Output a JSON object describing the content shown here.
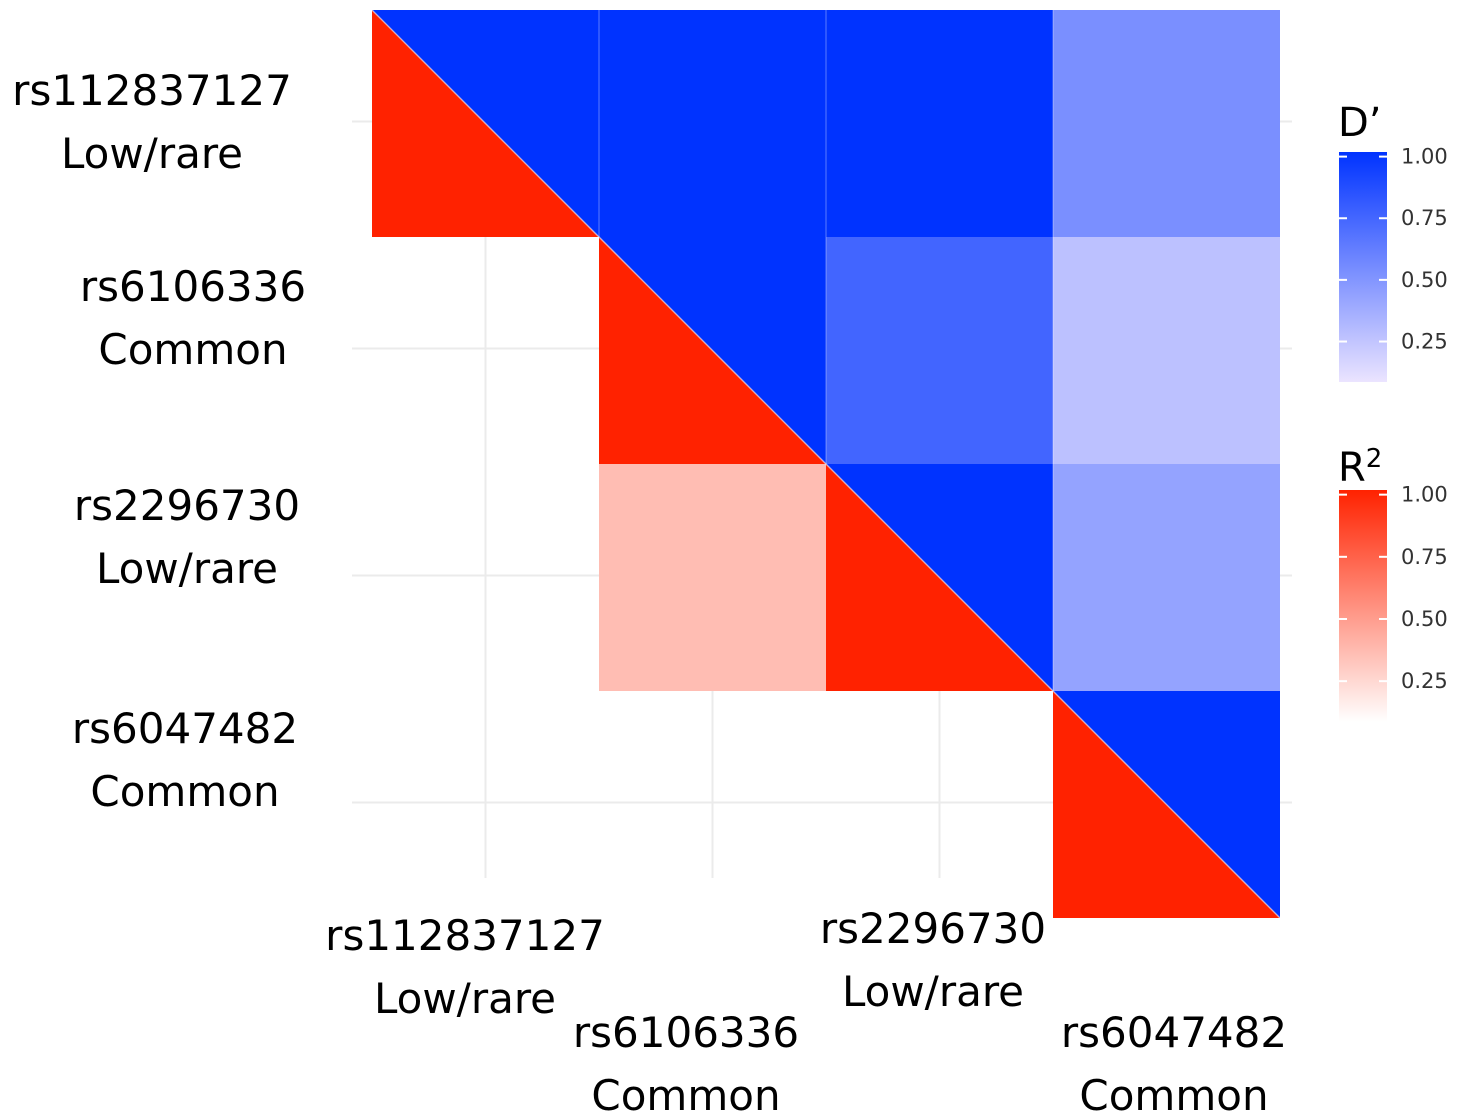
{
  "chart_data": {
    "type": "heatmap",
    "title": "",
    "snps": [
      {
        "id": "rs112837127",
        "freq": "Low/rare"
      },
      {
        "id": "rs6106336",
        "freq": "Common"
      },
      {
        "id": "rs2296730",
        "freq": "Low/rare"
      },
      {
        "id": "rs6047482",
        "freq": "Common"
      }
    ],
    "d_prime": [
      {
        "row": "rs112837127",
        "col": "rs112837127",
        "value": 1.0
      },
      {
        "row": "rs112837127",
        "col": "rs6106336",
        "value": 1.0
      },
      {
        "row": "rs112837127",
        "col": "rs2296730",
        "value": 1.0
      },
      {
        "row": "rs112837127",
        "col": "rs6047482",
        "value": 0.48
      },
      {
        "row": "rs6106336",
        "col": "rs6106336",
        "value": 1.0
      },
      {
        "row": "rs6106336",
        "col": "rs2296730",
        "value": 0.72
      },
      {
        "row": "rs6106336",
        "col": "rs6047482",
        "value": 0.2
      },
      {
        "row": "rs2296730",
        "col": "rs2296730",
        "value": 1.0
      },
      {
        "row": "rs2296730",
        "col": "rs6047482",
        "value": 0.37
      },
      {
        "row": "rs6047482",
        "col": "rs6047482",
        "value": 1.0
      }
    ],
    "r_squared": [
      {
        "row": "rs112837127",
        "col": "rs112837127",
        "value": 1.0
      },
      {
        "row": "rs6106336",
        "col": "rs6106336",
        "value": 1.0
      },
      {
        "row": "rs2296730",
        "col": "rs6106336",
        "value": 0.3
      },
      {
        "row": "rs2296730",
        "col": "rs2296730",
        "value": 1.0
      },
      {
        "row": "rs6047482",
        "col": "rs6047482",
        "value": 1.0
      }
    ],
    "legends": [
      {
        "title": "D’",
        "title_sup": "",
        "color_high": "#0033ff",
        "color_low": "#ebe4ff",
        "ticks": [
          "1.00",
          "0.75",
          "0.50",
          "0.25"
        ],
        "tick_values": [
          1.0,
          0.75,
          0.5,
          0.25
        ]
      },
      {
        "title": "R",
        "title_sup": "2",
        "color_high": "#ff2200",
        "color_low": "#ffffff",
        "ticks": [
          "1.00",
          "0.75",
          "0.50",
          "0.25"
        ],
        "tick_values": [
          1.0,
          0.75,
          0.5,
          0.25
        ]
      }
    ],
    "grid": true,
    "legend_position": "right"
  }
}
